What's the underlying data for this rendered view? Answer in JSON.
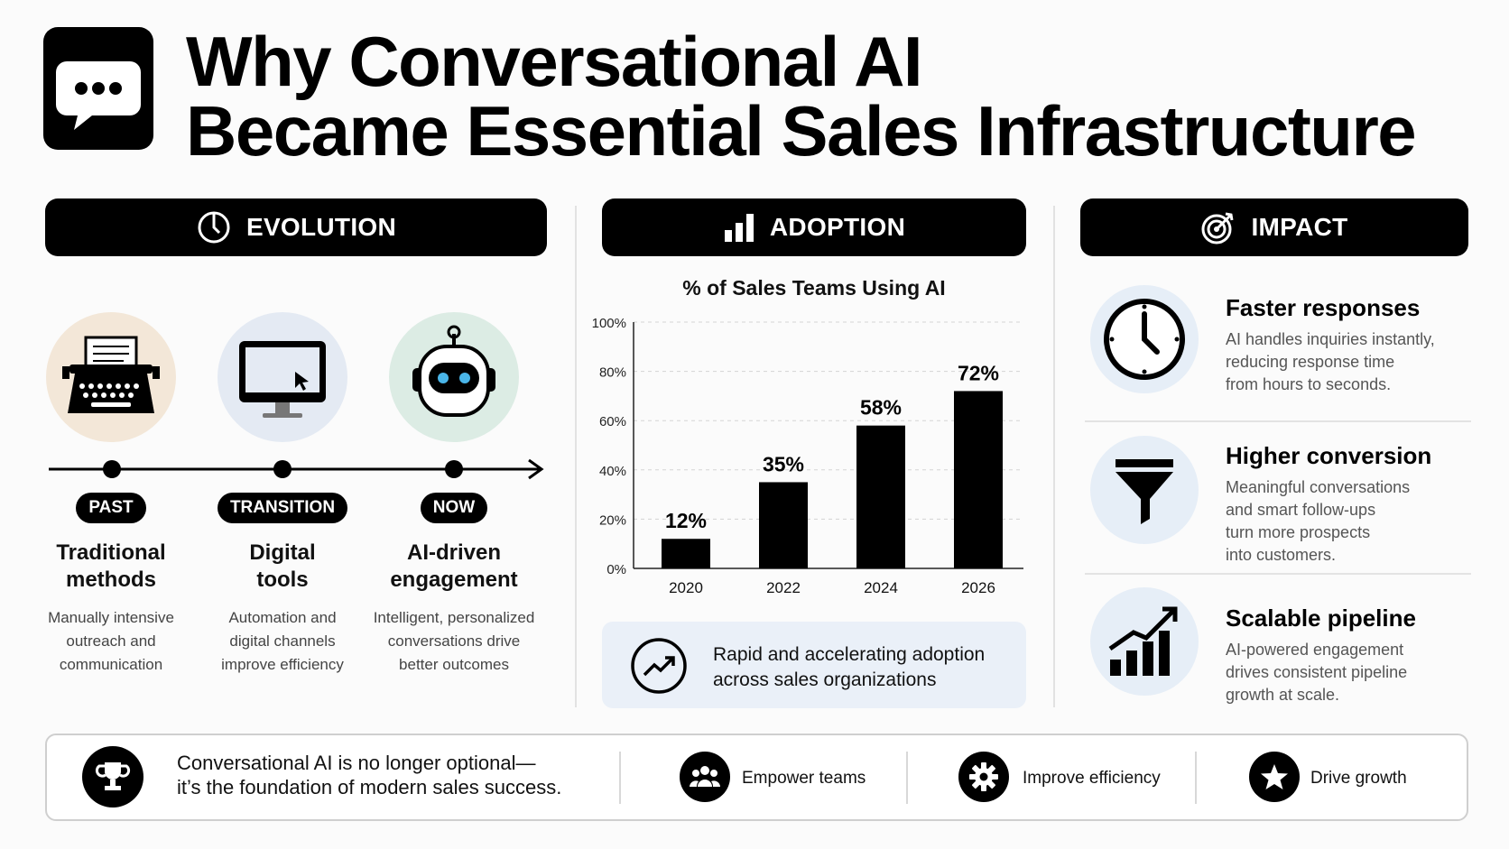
{
  "header": {
    "title_line1": "Why Conversational AI",
    "title_line2": "Became Essential Sales Infrastructure",
    "logo_icon": "chat-bubble-icon"
  },
  "sections": {
    "evolution": {
      "label": "EVOLUTION",
      "icon": "clock-outline-icon"
    },
    "adoption": {
      "label": "ADOPTION",
      "icon": "bar-chart-icon"
    },
    "impact": {
      "label": "IMPACT",
      "icon": "target-icon"
    }
  },
  "evolution": {
    "stages": [
      {
        "pill": "PAST",
        "name_line1": "Traditional",
        "name_line2": "methods",
        "desc_line1": "Manually intensive",
        "desc_line2": "outreach and",
        "desc_line3": "communication",
        "icon": "typewriter-icon",
        "bg": "#f3e7d8"
      },
      {
        "pill": "TRANSITION",
        "name_line1": "Digital",
        "name_line2": "tools",
        "desc_line1": "Automation and",
        "desc_line2": "digital channels",
        "desc_line3": "improve efficiency",
        "icon": "monitor-icon",
        "bg": "#e4eaf3"
      },
      {
        "pill": "NOW",
        "name_line1": "AI-driven",
        "name_line2": "engagement",
        "desc_line1": "Intelligent, personalized",
        "desc_line2": "conversations drive",
        "desc_line3": "better outcomes",
        "icon": "robot-icon",
        "bg": "#dcece4"
      }
    ]
  },
  "chart_data": {
    "type": "bar",
    "title": "% of Sales Teams Using AI",
    "categories": [
      "2020",
      "2022",
      "2024",
      "2026"
    ],
    "values": [
      12,
      35,
      58,
      72
    ],
    "value_labels": [
      "12%",
      "35%",
      "58%",
      "72%"
    ],
    "y_ticks": [
      "0%",
      "20%",
      "40%",
      "60%",
      "80%",
      "100%"
    ],
    "ylim": [
      0,
      100
    ],
    "grid": true,
    "bar_color": "#000000"
  },
  "adoption_note": {
    "line1": "Rapid and accelerating adoption",
    "line2": "across sales organizations",
    "icon": "trend-up-icon"
  },
  "impact": {
    "items": [
      {
        "title": "Faster responses",
        "desc_line1": "AI handles inquiries instantly,",
        "desc_line2": "reducing response time",
        "desc_line3": "from hours to seconds.",
        "desc_line4": "",
        "icon": "clock-icon"
      },
      {
        "title": "Higher conversion",
        "desc_line1": "Meaningful conversations",
        "desc_line2": "and smart follow-ups",
        "desc_line3": "turn more prospects",
        "desc_line4": "into customers.",
        "icon": "funnel-icon"
      },
      {
        "title": "Scalable pipeline",
        "desc_line1": "AI-powered engagement",
        "desc_line2": "drives consistent pipeline",
        "desc_line3": "growth at scale.",
        "desc_line4": "",
        "icon": "growth-chart-icon"
      }
    ]
  },
  "footer": {
    "message_line1": "Conversational AI is no longer optional—",
    "message_line2": "it’s the foundation of modern sales success.",
    "trophy_icon": "trophy-icon",
    "pillars": [
      {
        "label": "Empower teams",
        "icon": "team-icon"
      },
      {
        "label": "Improve efficiency",
        "icon": "gear-icon"
      },
      {
        "label": "Drive growth",
        "icon": "star-icon"
      }
    ]
  }
}
